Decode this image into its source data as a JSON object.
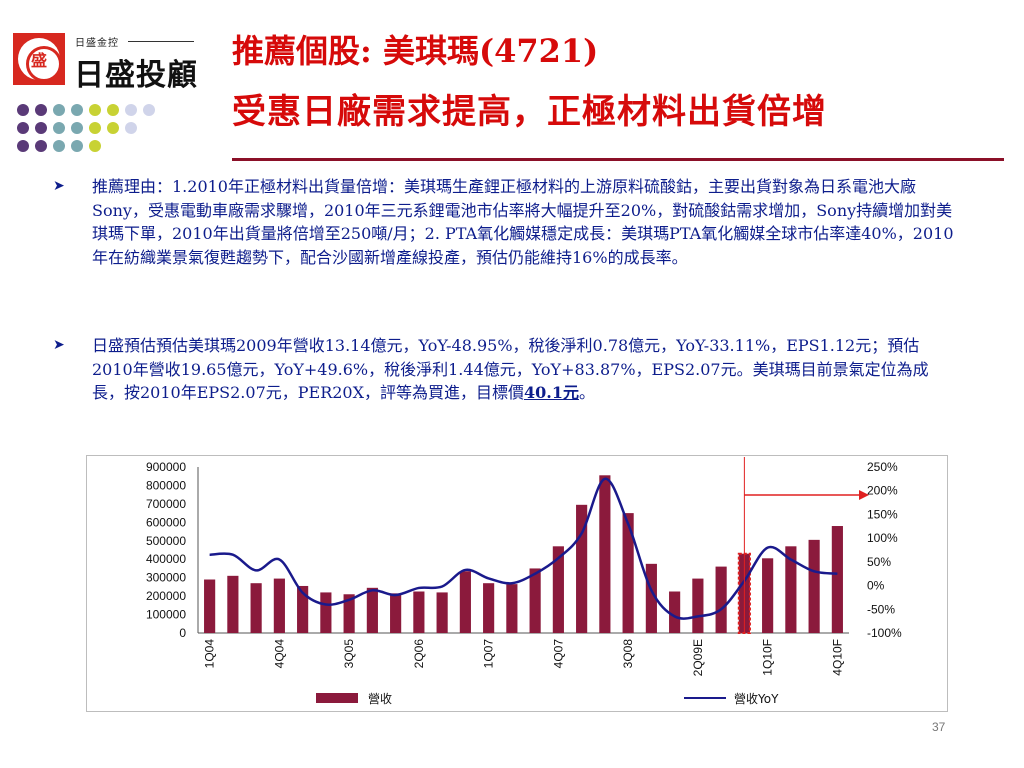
{
  "logo": {
    "emblem_char": "盛",
    "subtitle": "日盛金控",
    "name": "日盛投顧"
  },
  "title": {
    "line1": "推薦個股: 美琪瑪(4721)",
    "line2": "受惠日廠需求提高，正極材料出貨倍增"
  },
  "bullets": [
    {
      "text": "推薦理由：1.2010年正極材料出貨量倍增：美琪瑪生產鋰正極材料的上游原料硫酸鈷，主要出貨對象為日系電池大廠Sony，受惠電動車廠需求驟增，2010年三元系鋰電池市佔率將大幅提升至20%，對硫酸鈷需求增加，Sony持續增加對美琪瑪下單，2010年出貨量將倍增至250噸/月；2. PTA氧化觸媒穩定成長：美琪瑪PTA氧化觸媒全球市佔率達40%，2010年在紡織業景氣復甦趨勢下，配合沙國新增產線投產，預估仍能維持16%的成長率。"
    },
    {
      "text": "日盛預估預估美琪瑪2009年營收13.14億元，YoY-48.95%，稅後淨利0.78億元，YoY-33.11%，EPS1.12元；預估2010年營收19.65億元，YoY+49.6%，稅後淨利1.44億元，YoY+83.87%，EPS2.07元。美琪瑪目前景氣定位為成長，按2010年EPS2.07元，PER20X，評等為買進，目標價",
      "target": "40.1元",
      "tail": "。"
    }
  ],
  "page_number": "37",
  "colors": {
    "title": "#d60a0a",
    "body_text": "#0d1d8c",
    "bar": "#8b1a3c",
    "line": "#1a1a8c",
    "forecast_marker": "#e02020"
  },
  "chart_data": {
    "type": "bar",
    "categories": [
      "1Q04",
      "2Q04",
      "3Q04",
      "4Q04",
      "1Q05",
      "2Q05",
      "3Q05",
      "4Q05",
      "1Q06",
      "2Q06",
      "3Q06",
      "4Q06",
      "1Q07",
      "2Q07",
      "3Q07",
      "4Q07",
      "1Q08",
      "2Q08",
      "3Q08",
      "4Q08",
      "1Q09",
      "2Q09E",
      "3Q09E",
      "4Q09E",
      "1Q10F",
      "2Q10F",
      "3Q10F",
      "4Q10F"
    ],
    "x_tick_labels": [
      "1Q04",
      "4Q04",
      "3Q05",
      "2Q06",
      "1Q07",
      "4Q07",
      "3Q08",
      "2Q09E",
      "1Q10F",
      "4Q10F"
    ],
    "series": [
      {
        "name": "營收",
        "axis": "left",
        "values": [
          290000,
          310000,
          270000,
          295000,
          255000,
          220000,
          210000,
          245000,
          215000,
          225000,
          220000,
          335000,
          270000,
          265000,
          350000,
          470000,
          695000,
          855000,
          650000,
          375000,
          225000,
          295000,
          360000,
          430000,
          405000,
          470000,
          505000,
          580000
        ]
      },
      {
        "name": "營收YoY",
        "axis": "right",
        "type": "line",
        "values": [
          65,
          65,
          32,
          55,
          -15,
          -40,
          -30,
          -10,
          -20,
          -5,
          -2,
          33,
          15,
          5,
          25,
          58,
          110,
          225,
          130,
          -10,
          -65,
          -65,
          -50,
          10,
          80,
          55,
          30,
          25
        ]
      }
    ],
    "forecast_start_index": 23,
    "y_left": {
      "ticks": [
        "900000",
        "800000",
        "700000",
        "600000",
        "500000",
        "400000",
        "300000",
        "200000",
        "100000",
        "0"
      ],
      "ylim": [
        0,
        900000
      ]
    },
    "y_right": {
      "ticks": [
        "250%",
        "200%",
        "150%",
        "100%",
        "50%",
        "0%",
        "-50%",
        "-100%"
      ],
      "ylim": [
        -100,
        250
      ]
    },
    "legend": [
      {
        "label": "營收",
        "kind": "bar"
      },
      {
        "label": "營收YoY",
        "kind": "line"
      }
    ],
    "legend_position": "bottom"
  }
}
